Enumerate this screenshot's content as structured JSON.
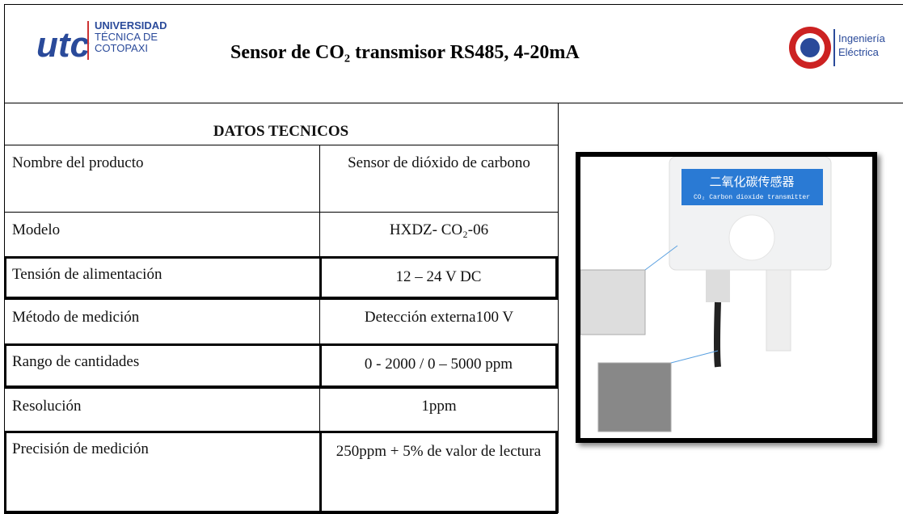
{
  "header": {
    "left_logo": {
      "mark": "utc",
      "lines": [
        "UNIVERSIDAD",
        "TÉCNICA DE",
        "COTOPAXI"
      ]
    },
    "title": "Sensor de CO₂ transmisor RS485, 4-20mA",
    "right_logo": {
      "lines": [
        "Ingeniería",
        "Eléctrica"
      ]
    }
  },
  "table": {
    "heading": "DATOS TECNICOS",
    "rows": [
      [
        "Nombre del producto",
        "Sensor de dióxido de carbono"
      ],
      [
        "Modelo",
        "HXDZ- CO₂-06"
      ],
      [
        "Tensión de alimentación",
        "12 – 24 V DC"
      ],
      [
        "Método de medición",
        "Detección externa100 V"
      ],
      [
        "Rango de cantidades",
        "0 - 2000 / 0 – 5000 ppm"
      ],
      [
        "Resolución",
        "1ppm"
      ],
      [
        "Precisión de medición",
        "250ppm + 5% de valor de lectura"
      ]
    ]
  },
  "image": {
    "labels": [
      "二氧化碳传感器",
      "CO₂ Carbon dioxide transmitter"
    ]
  }
}
